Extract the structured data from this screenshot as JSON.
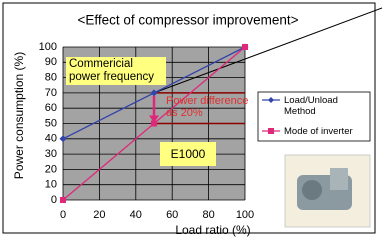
{
  "chart_data": {
    "type": "line",
    "title": "<Effect of compressor improvement>",
    "xlabel": "Load ratio (%)",
    "ylabel": "Power consumption (%)",
    "x": [
      0,
      50,
      100
    ],
    "series": [
      {
        "name": "Load/Unload Method",
        "color": "#3344aa",
        "marker": "diamond",
        "values": [
          40,
          70,
          100
        ]
      },
      {
        "name": "Mode of inverter",
        "color": "#e0287a",
        "marker": "square",
        "values": [
          0,
          50,
          100
        ]
      }
    ],
    "xlim": [
      0,
      100
    ],
    "ylim": [
      0,
      100
    ],
    "xticks": [
      0,
      20,
      40,
      60,
      80,
      100
    ],
    "yticks": [
      0,
      10,
      20,
      30,
      40,
      50,
      60,
      70,
      80,
      90,
      100
    ],
    "grid": true,
    "legend": "right",
    "annotations": [
      "Commericial power frequency",
      "Power difference as 20%",
      "E1000"
    ]
  }
}
